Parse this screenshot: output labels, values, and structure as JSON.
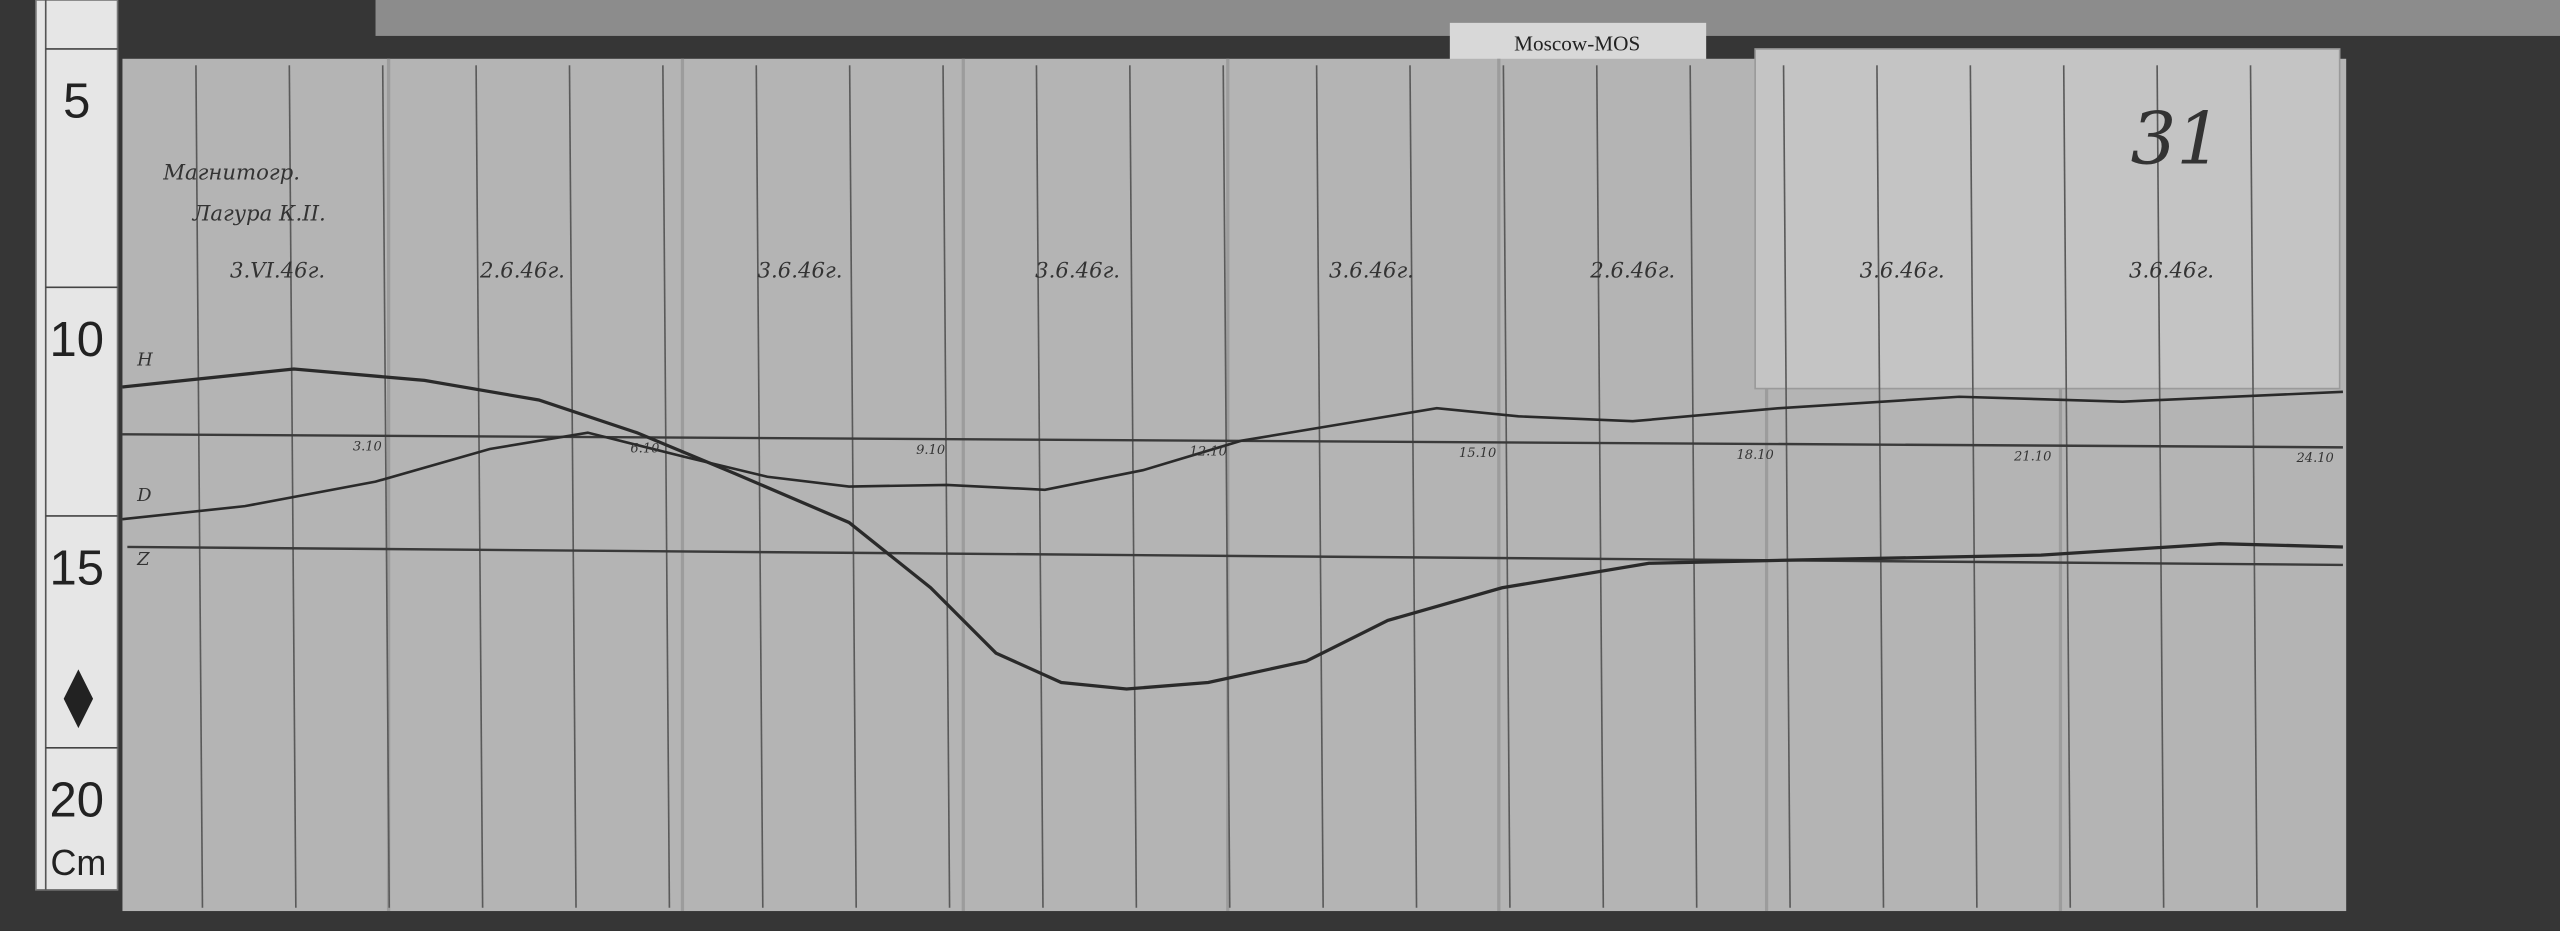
{
  "ruler": {
    "labels": [
      "5",
      "10",
      "15",
      "20"
    ],
    "unit": "Cm"
  },
  "tag": "Moscow-MOS",
  "sheet": {
    "header": [
      "Магнитогр.",
      "Лагура К.II."
    ],
    "number": "31",
    "dates": [
      "3.VI.46г.",
      "2.6.46г.",
      "3.6.46г.",
      "3.6.46г.",
      "3.6.46г.",
      "2.6.46г.",
      "3.6.46г.",
      "3.6.46г."
    ],
    "times": [
      "3.10",
      "6.10",
      "9.10",
      "12.10",
      "15.10",
      "18.10",
      "21.10",
      "24.10"
    ],
    "traces": [
      "H",
      "D",
      "Z"
    ]
  }
}
